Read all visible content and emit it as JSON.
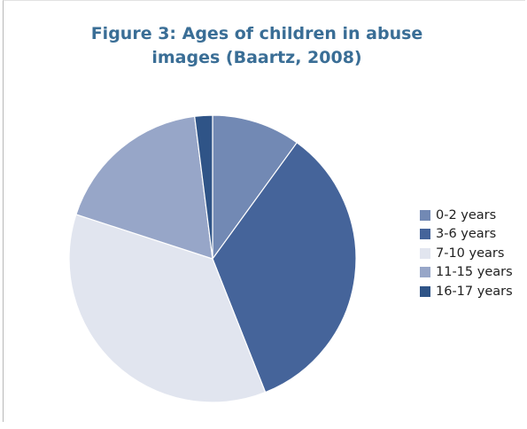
{
  "chart_data": {
    "type": "pie",
    "title_lines": [
      "Figure 3: Ages of children in abuse",
      "images (Baartz, 2008)"
    ],
    "categories": [
      "0-2 years",
      "3-6 years",
      "7-10 years",
      "11-15 years",
      "16-17 years"
    ],
    "values": [
      10,
      34,
      36,
      18,
      2
    ],
    "value_unit": "percent (estimated)",
    "colors": [
      "#7289b4",
      "#45649a",
      "#e1e5ef",
      "#97a6c8",
      "#2f5487"
    ],
    "legend_position": "right"
  }
}
